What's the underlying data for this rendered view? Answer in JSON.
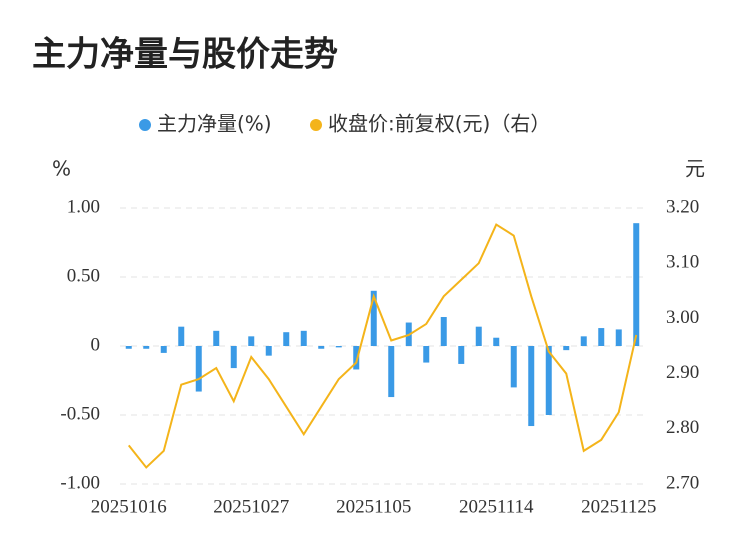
{
  "chart_data": {
    "type": "bar_line",
    "title": "主力净量与股价走势",
    "y_label": "%",
    "y2_label": "元",
    "categories": [
      "20251016",
      null,
      null,
      null,
      null,
      null,
      null,
      "20251027",
      null,
      null,
      null,
      null,
      null,
      null,
      "20251105",
      null,
      null,
      null,
      null,
      null,
      null,
      "20251114",
      null,
      null,
      null,
      null,
      null,
      null,
      "20251125",
      null
    ],
    "series": [
      {
        "name": "主力净量(%)",
        "type": "bar",
        "color": "#3a9ae6",
        "axis": "y",
        "values": [
          -0.02,
          -0.02,
          -0.05,
          0.14,
          -0.33,
          0.11,
          -0.16,
          0.07,
          -0.07,
          0.1,
          0.11,
          -0.02,
          -0.01,
          -0.17,
          0.4,
          -0.37,
          0.17,
          -0.12,
          0.21,
          -0.13,
          0.14,
          0.06,
          -0.3,
          -0.58,
          -0.5,
          -0.03,
          0.07,
          0.13,
          0.12,
          0.89
        ]
      },
      {
        "name": "收盘价:前复权(元)（右）",
        "type": "line",
        "color": "#f4b41a",
        "axis": "y2",
        "values": [
          2.77,
          2.73,
          2.76,
          2.88,
          2.89,
          2.91,
          2.85,
          2.93,
          2.89,
          2.84,
          2.79,
          2.84,
          2.89,
          2.92,
          3.04,
          2.96,
          2.97,
          2.99,
          3.04,
          3.07,
          3.1,
          3.17,
          3.15,
          3.04,
          2.94,
          2.9,
          2.76,
          2.78,
          2.83,
          2.97
        ]
      }
    ],
    "ylim": [
      -1,
      1
    ],
    "yticks": [
      {
        "value": 1,
        "label": "1.00"
      },
      {
        "value": 0.5,
        "label": "0.50"
      },
      0,
      {
        "value": -0.5,
        "label": "-0.50"
      },
      {
        "value": -1,
        "label": "-1.00"
      }
    ],
    "y2lim": [
      2.7,
      3.2
    ],
    "y2ticks": [
      {
        "value": 3.2,
        "label": "3.20"
      },
      {
        "value": 3.1,
        "label": "3.10"
      },
      {
        "value": 3.0,
        "label": "3.00"
      },
      {
        "value": 2.9,
        "label": "2.90"
      },
      {
        "value": 2.8,
        "label": "2.80"
      },
      {
        "value": 2.7,
        "label": "2.70"
      }
    ],
    "grid": true,
    "legend": "top"
  }
}
